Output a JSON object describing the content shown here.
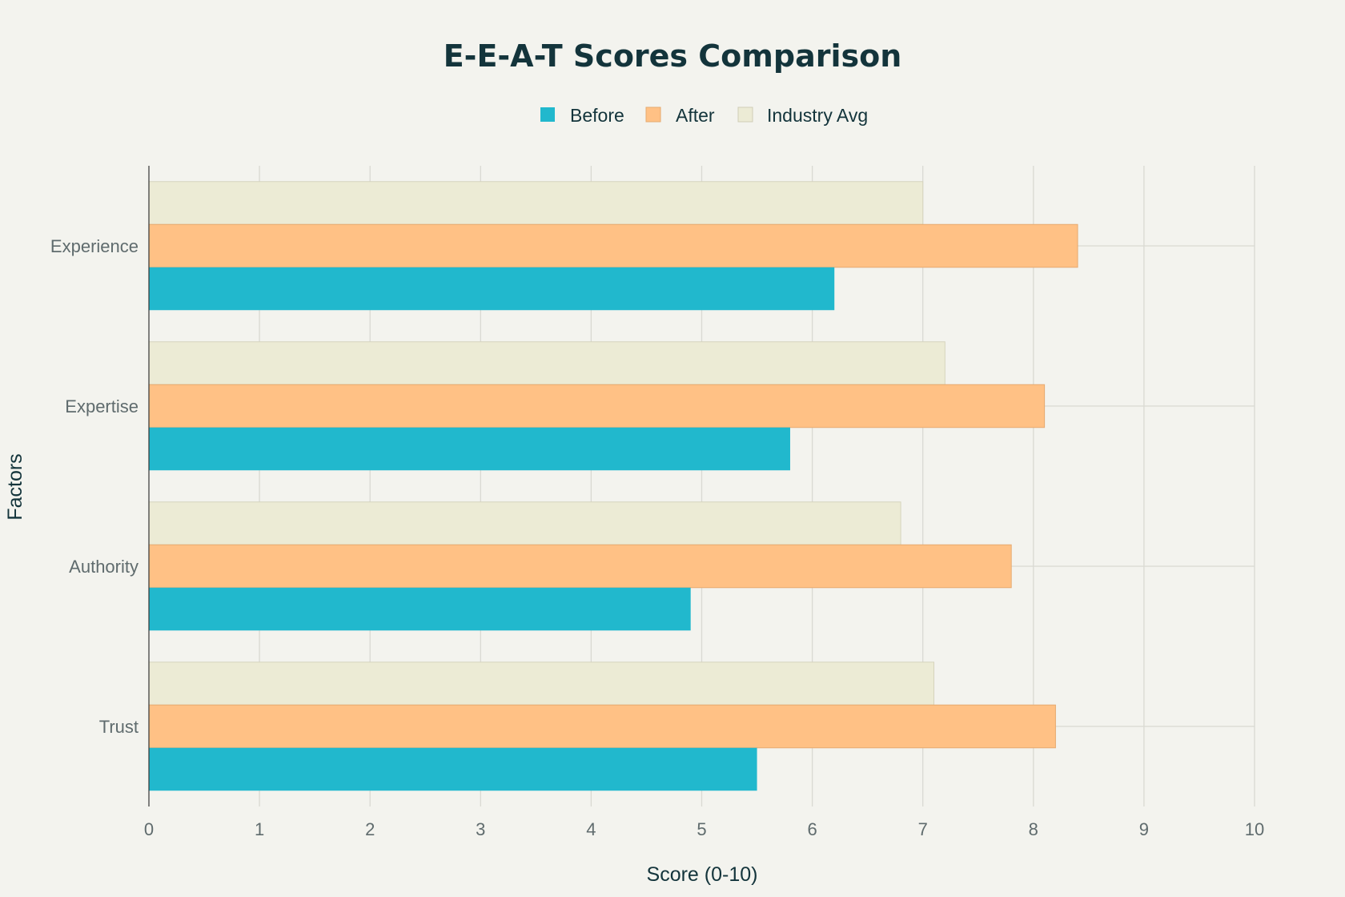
{
  "chart_data": {
    "type": "bar",
    "orientation": "horizontal",
    "title": "E-E-A-T Scores Comparison",
    "xlabel": "Score (0-10)",
    "ylabel": "Factors",
    "xlim": [
      0,
      10
    ],
    "xticks": [
      0,
      1,
      2,
      3,
      4,
      5,
      6,
      7,
      8,
      9,
      10
    ],
    "categories": [
      "Experience",
      "Expertise",
      "Authority",
      "Trust"
    ],
    "series": [
      {
        "name": "Before",
        "color": "#21b8cd",
        "values": [
          6.2,
          5.8,
          4.9,
          5.5
        ]
      },
      {
        "name": "After",
        "color": "#ffc185",
        "values": [
          8.4,
          8.1,
          7.8,
          8.2
        ]
      },
      {
        "name": "Industry Avg",
        "color": "#ecebd5",
        "values": [
          7.0,
          7.2,
          6.8,
          7.1
        ]
      }
    ],
    "grid": true,
    "legend_position": "top-center"
  }
}
